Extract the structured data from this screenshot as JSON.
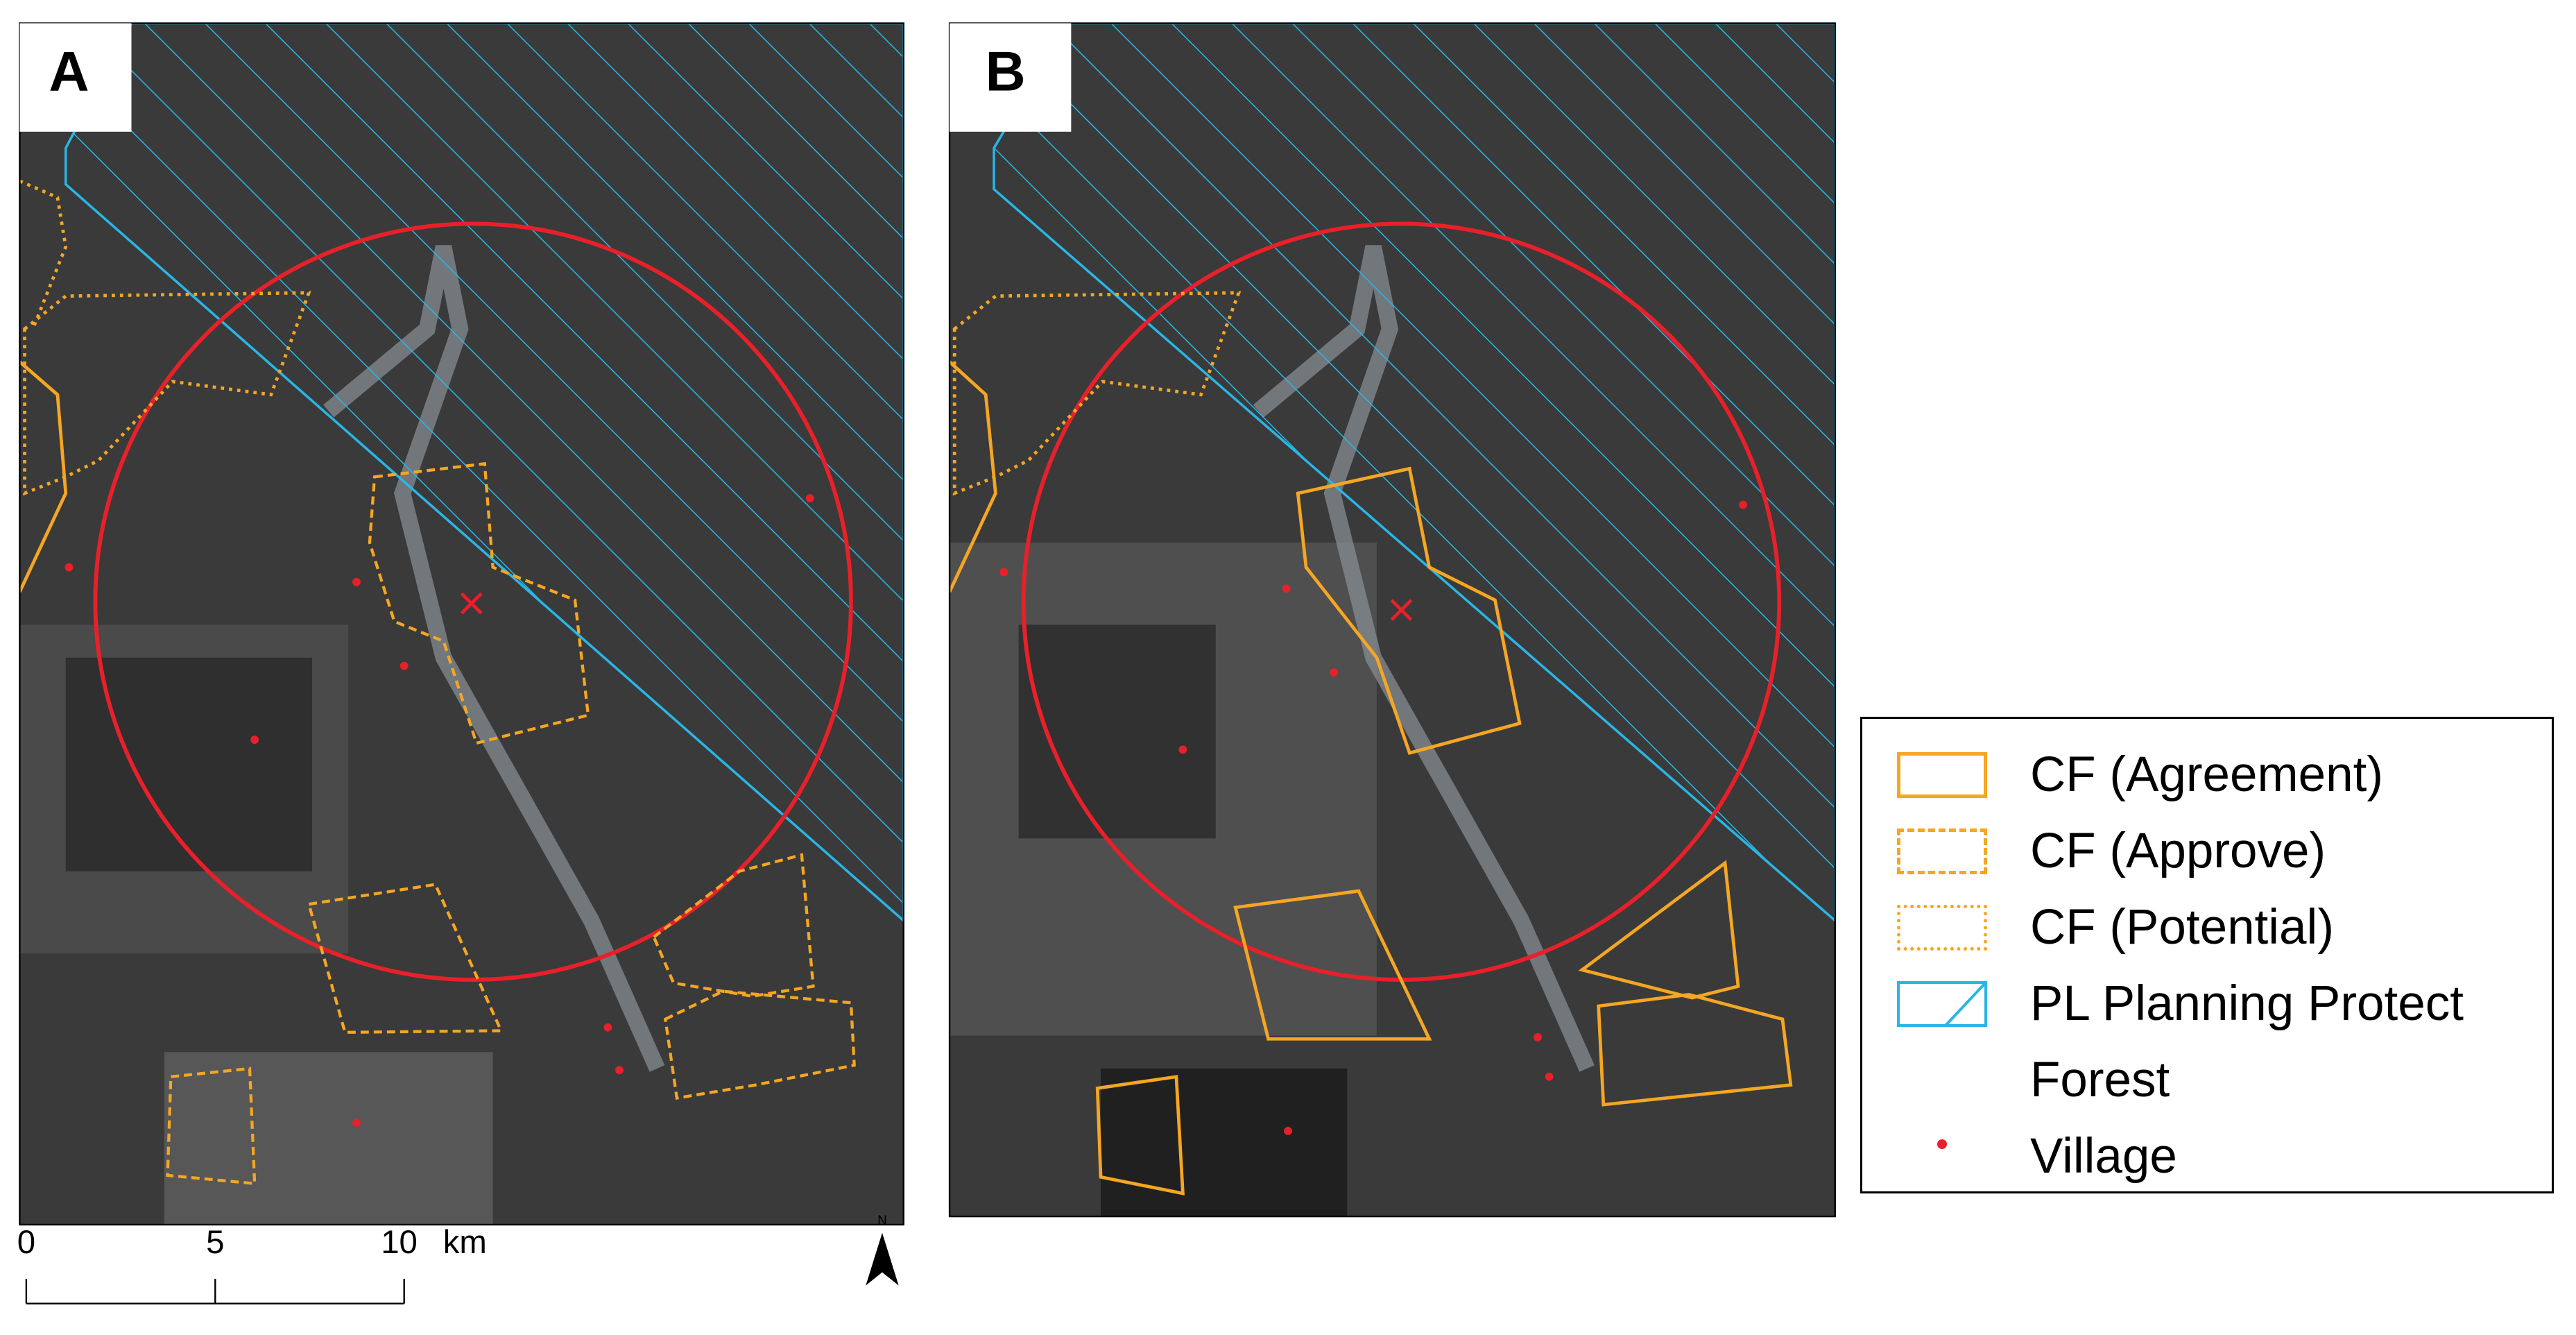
{
  "maps": [
    {
      "label": "A"
    },
    {
      "label": "B"
    }
  ],
  "scale_bar": {
    "labels": [
      "0",
      "5",
      "10"
    ],
    "unit": "km"
  },
  "north_arrow": "N",
  "legend": [
    "CF (Agreement)",
    "CF (Approve)",
    "CF (Potential)",
    "PL Planning Protect Forest",
    "Village"
  ]
}
